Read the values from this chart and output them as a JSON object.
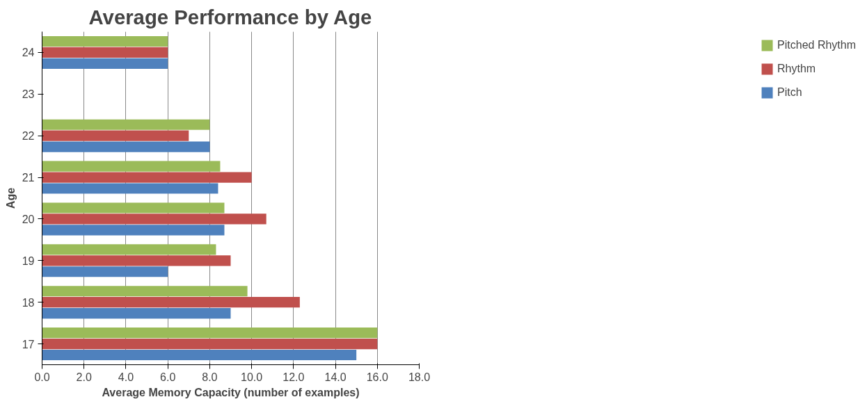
{
  "chart_data": {
    "type": "bar",
    "orientation": "horizontal",
    "title": "Average Performance by Age",
    "xlabel": "Average Memory Capacity (number of examples)",
    "ylabel": "Age",
    "categories": [
      "24",
      "23",
      "22",
      "21",
      "20",
      "19",
      "18",
      "17"
    ],
    "series": [
      {
        "name": "Pitch",
        "color": "#4f81bd",
        "values": [
          6.0,
          null,
          8.0,
          8.4,
          8.7,
          6.0,
          9.0,
          15.0
        ]
      },
      {
        "name": "Rhythm",
        "color": "#c0504d",
        "values": [
          6.0,
          null,
          7.0,
          10.0,
          10.7,
          9.0,
          12.3,
          16.0
        ]
      },
      {
        "name": "Pitched Rhythm",
        "color": "#9bbb59",
        "values": [
          6.0,
          null,
          8.0,
          8.5,
          8.7,
          8.3,
          9.8,
          16.0
        ]
      }
    ],
    "xlim": [
      0,
      18
    ],
    "xticks": [
      {
        "value": 0,
        "label": "0.0"
      },
      {
        "value": 2,
        "label": "2.0"
      },
      {
        "value": 4,
        "label": "4.0"
      },
      {
        "value": 6,
        "label": "6.0"
      },
      {
        "value": 8,
        "label": "8.0"
      },
      {
        "value": 10,
        "label": "10.0"
      },
      {
        "value": 12,
        "label": "12.0"
      },
      {
        "value": 14,
        "label": "14.0"
      },
      {
        "value": 16,
        "label": "16.0"
      },
      {
        "value": 18,
        "label": "18.0"
      }
    ],
    "grid": "x",
    "legend": "right"
  }
}
